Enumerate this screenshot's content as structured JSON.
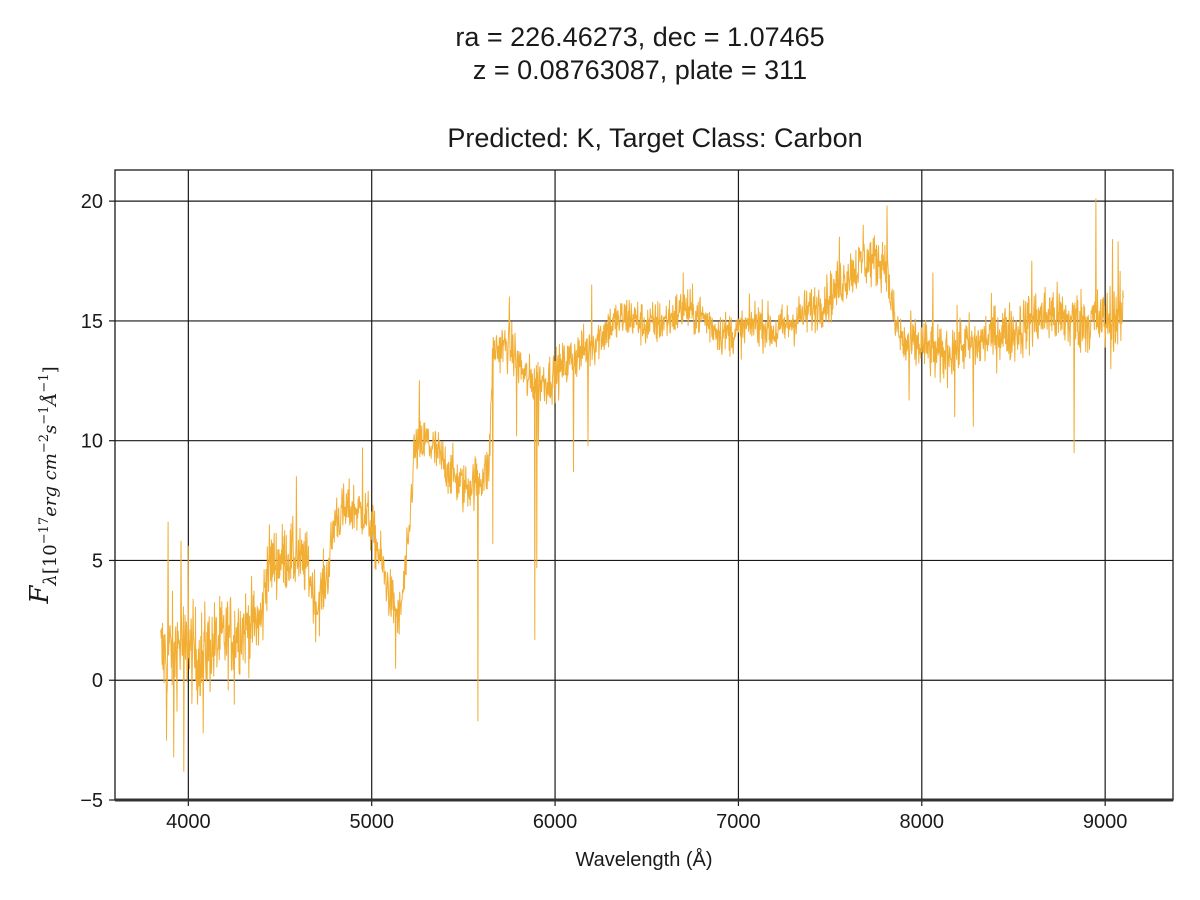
{
  "chart_data": {
    "type": "line",
    "title_lines": [
      "ra = 226.46273, dec = 1.07465",
      "z = 0.08763087, plate = 311",
      "Predicted: K, Target Class: Carbon"
    ],
    "xlabel": "Wavelength (Å)",
    "ylabel": {
      "main": "F",
      "sub_lambda": "λ",
      "bracket_open": "[10",
      "exp_neg17": "−17",
      "unit_erg": "erg cm",
      "exp_neg2": "−2",
      "unit_s": "s",
      "exp_neg1a": "−1",
      "unit_A": "Å",
      "exp_neg1b": "−1",
      "bracket_close": "]"
    },
    "xlim": [
      3600,
      9370
    ],
    "ylim": [
      -5,
      21.3
    ],
    "xticks": [
      "4000",
      "5000",
      "6000",
      "7000",
      "8000",
      "9000"
    ],
    "yticks": [
      "−5",
      "0",
      "5",
      "10",
      "15",
      "20"
    ],
    "grid": true,
    "line_color": "#f2ad33",
    "series": [
      {
        "x_range": [
          3850,
          9100
        ],
        "continuum": [
          [
            3850,
            1.0
          ],
          [
            3950,
            1.5
          ],
          [
            4050,
            1.0
          ],
          [
            4150,
            1.5
          ],
          [
            4250,
            2.0
          ],
          [
            4400,
            2.5
          ],
          [
            4430,
            4.8
          ],
          [
            4550,
            5.2
          ],
          [
            4650,
            4.8
          ],
          [
            4700,
            3.0
          ],
          [
            4760,
            4.5
          ],
          [
            4800,
            6.8
          ],
          [
            4900,
            7.2
          ],
          [
            4980,
            6.8
          ],
          [
            5050,
            5.0
          ],
          [
            5100,
            3.5
          ],
          [
            5150,
            2.5
          ],
          [
            5200,
            5.5
          ],
          [
            5230,
            9.5
          ],
          [
            5300,
            10.0
          ],
          [
            5400,
            9.0
          ],
          [
            5500,
            8.0
          ],
          [
            5600,
            8.5
          ],
          [
            5640,
            8.8
          ],
          [
            5660,
            13.8
          ],
          [
            5750,
            14.0
          ],
          [
            5850,
            12.5
          ],
          [
            5950,
            12.5
          ],
          [
            6000,
            12.8
          ],
          [
            6100,
            13.5
          ],
          [
            6200,
            14.0
          ],
          [
            6300,
            14.8
          ],
          [
            6400,
            15.2
          ],
          [
            6500,
            14.8
          ],
          [
            6600,
            15.0
          ],
          [
            6700,
            15.5
          ],
          [
            6800,
            15.2
          ],
          [
            6900,
            14.5
          ],
          [
            7000,
            14.5
          ],
          [
            7100,
            15.0
          ],
          [
            7200,
            14.5
          ],
          [
            7300,
            15.0
          ],
          [
            7400,
            15.5
          ],
          [
            7500,
            16.0
          ],
          [
            7600,
            17.0
          ],
          [
            7700,
            17.5
          ],
          [
            7800,
            17.5
          ],
          [
            7850,
            15.0
          ],
          [
            7900,
            14.0
          ],
          [
            8000,
            14.0
          ],
          [
            8100,
            13.5
          ],
          [
            8200,
            14.0
          ],
          [
            8300,
            14.0
          ],
          [
            8400,
            14.5
          ],
          [
            8500,
            14.5
          ],
          [
            8600,
            15.0
          ],
          [
            8700,
            15.3
          ],
          [
            8800,
            15.0
          ],
          [
            8900,
            15.0
          ],
          [
            9000,
            15.0
          ],
          [
            9100,
            15.2
          ]
        ],
        "noise": [
          [
            3850,
            1.7
          ],
          [
            4450,
            1.2
          ],
          [
            4800,
            0.9
          ],
          [
            5700,
            0.8
          ],
          [
            7000,
            0.7
          ],
          [
            7500,
            0.8
          ],
          [
            7900,
            0.9
          ],
          [
            8600,
            1.0
          ],
          [
            9100,
            1.1
          ]
        ],
        "dips": [
          [
            3880,
            -2.5
          ],
          [
            3920,
            -3.2
          ],
          [
            3975,
            -3.8
          ],
          [
            4080,
            -2.2
          ],
          [
            4250,
            -1.0
          ],
          [
            5130,
            0.5
          ],
          [
            5580,
            -1.7
          ],
          [
            5660,
            5.7
          ],
          [
            5890,
            1.7
          ],
          [
            5900,
            4.7
          ],
          [
            5910,
            9.8
          ],
          [
            6180,
            9.8
          ],
          [
            6100,
            8.7
          ],
          [
            5790,
            10.2
          ],
          [
            7930,
            11.7
          ],
          [
            8280,
            10.6
          ],
          [
            8180,
            11.0
          ],
          [
            8830,
            9.5
          ],
          [
            9030,
            13.0
          ]
        ],
        "spikes": [
          [
            3890,
            6.6
          ],
          [
            3960,
            5.8
          ],
          [
            4000,
            5.6
          ],
          [
            4590,
            8.5
          ],
          [
            4950,
            9.7
          ],
          [
            5260,
            12.5
          ],
          [
            5750,
            16.0
          ],
          [
            6200,
            16.5
          ],
          [
            6700,
            17.0
          ],
          [
            7550,
            18.5
          ],
          [
            7680,
            19.0
          ],
          [
            7810,
            19.8
          ],
          [
            8060,
            17.0
          ],
          [
            8600,
            17.5
          ],
          [
            8950,
            20.1
          ],
          [
            9040,
            18.4
          ],
          [
            9070,
            18.3
          ]
        ]
      }
    ]
  }
}
